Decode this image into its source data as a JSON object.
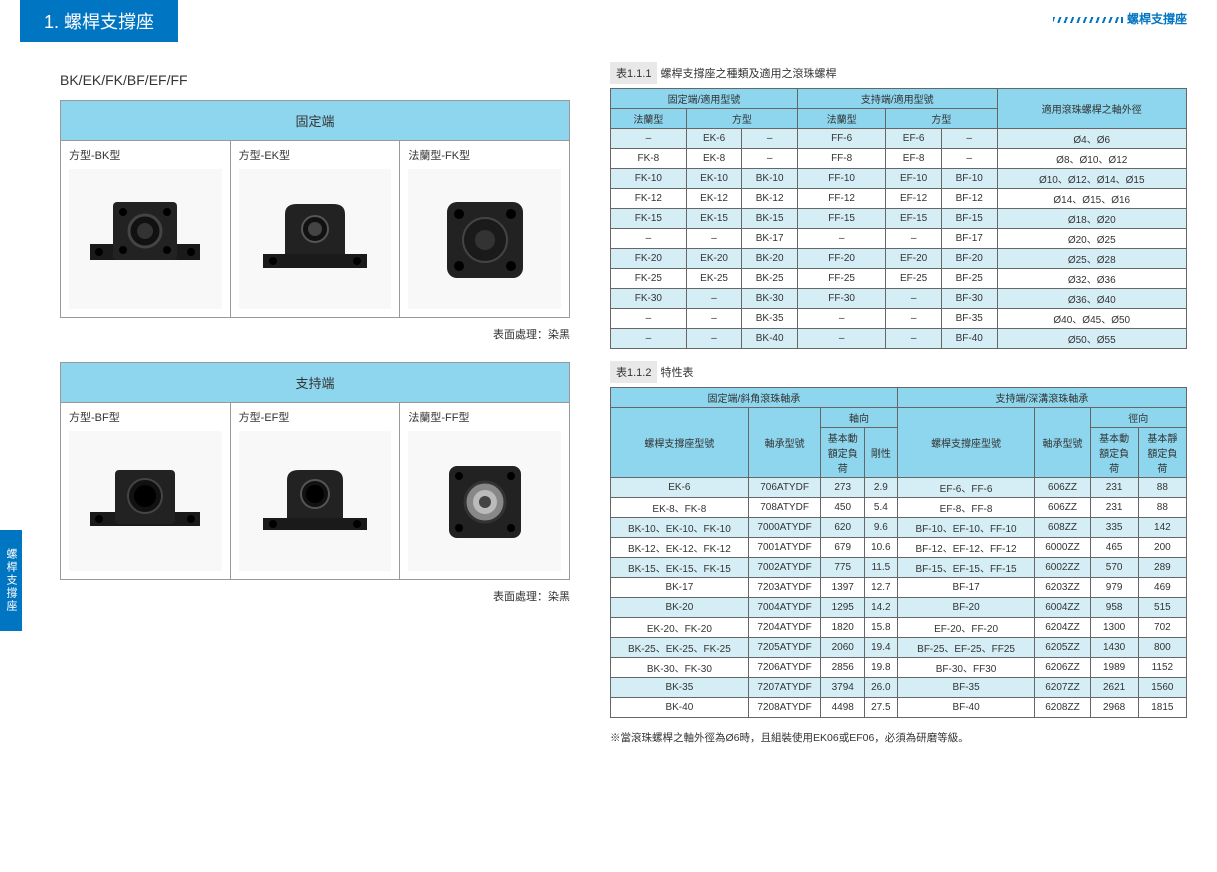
{
  "header": {
    "tab": "1. 螺桿支撐座",
    "topRight": "螺桿支撐座",
    "sideTab": "螺桿支撐座"
  },
  "left": {
    "subtitle": "BK/EK/FK/BF/EF/FF",
    "box1": {
      "title": "固定端",
      "c1": "方型-BK型",
      "c2": "方型-EK型",
      "c3": "法蘭型-FK型"
    },
    "box2": {
      "title": "支持端",
      "c1": "方型-BF型",
      "c2": "方型-EF型",
      "c3": "法蘭型-FF型"
    },
    "note": "表面處理：染黑"
  },
  "t1": {
    "caption_pre": "表1.1.1",
    "caption": "螺桿支撐座之種類及適用之滾珠螺桿",
    "h_fixed": "固定端/適用型號",
    "h_support": "支持端/適用型號",
    "h_diam": "適用滾珠螺桿之軸外徑",
    "h_flange": "法蘭型",
    "h_square": "方型",
    "rows": [
      {
        "a": "–",
        "b": "EK-6",
        "c": "–",
        "d": "FF-6",
        "e": "EF-6",
        "f": "–",
        "g": "Ø4、Ø6",
        "alt": 1
      },
      {
        "a": "FK-8",
        "b": "EK-8",
        "c": "–",
        "d": "FF-8",
        "e": "EF-8",
        "f": "–",
        "g": "Ø8、Ø10、Ø12",
        "alt": 0
      },
      {
        "a": "FK-10",
        "b": "EK-10",
        "c": "BK-10",
        "d": "FF-10",
        "e": "EF-10",
        "f": "BF-10",
        "g": "Ø10、Ø12、Ø14、Ø15",
        "alt": 1
      },
      {
        "a": "FK-12",
        "b": "EK-12",
        "c": "BK-12",
        "d": "FF-12",
        "e": "EF-12",
        "f": "BF-12",
        "g": "Ø14、Ø15、Ø16",
        "alt": 0
      },
      {
        "a": "FK-15",
        "b": "EK-15",
        "c": "BK-15",
        "d": "FF-15",
        "e": "EF-15",
        "f": "BF-15",
        "g": "Ø18、Ø20",
        "alt": 1
      },
      {
        "a": "–",
        "b": "–",
        "c": "BK-17",
        "d": "–",
        "e": "–",
        "f": "BF-17",
        "g": "Ø20、Ø25",
        "alt": 0
      },
      {
        "a": "FK-20",
        "b": "EK-20",
        "c": "BK-20",
        "d": "FF-20",
        "e": "EF-20",
        "f": "BF-20",
        "g": "Ø25、Ø28",
        "alt": 1
      },
      {
        "a": "FK-25",
        "b": "EK-25",
        "c": "BK-25",
        "d": "FF-25",
        "e": "EF-25",
        "f": "BF-25",
        "g": "Ø32、Ø36",
        "alt": 0
      },
      {
        "a": "FK-30",
        "b": "–",
        "c": "BK-30",
        "d": "FF-30",
        "e": "–",
        "f": "BF-30",
        "g": "Ø36、Ø40",
        "alt": 1
      },
      {
        "a": "–",
        "b": "–",
        "c": "BK-35",
        "d": "–",
        "e": "–",
        "f": "BF-35",
        "g": "Ø40、Ø45、Ø50",
        "alt": 0
      },
      {
        "a": "–",
        "b": "–",
        "c": "BK-40",
        "d": "–",
        "e": "–",
        "f": "BF-40",
        "g": "Ø50、Ø55",
        "alt": 1
      }
    ]
  },
  "t2": {
    "caption_pre": "表1.1.2",
    "caption": "特性表",
    "h_fixed": "固定端/斜角滾珠軸承",
    "h_support": "支持端/深溝滾珠軸承",
    "h_model": "螺桿支撐座型號",
    "h_bearing": "軸承型號",
    "h_axial": "軸向",
    "h_radial": "徑向",
    "h_dyn": "基本動額定負荷",
    "h_rigid": "剛性",
    "h_static": "基本靜額定負荷",
    "rows": [
      {
        "a": "EK-6",
        "b": "706ATYDF",
        "c": "273",
        "d": "2.9",
        "e": "EF-6、FF-6",
        "f": "606ZZ",
        "g": "231",
        "h": "88",
        "alt": 1
      },
      {
        "a": "EK-8、FK-8",
        "b": "708ATYDF",
        "c": "450",
        "d": "5.4",
        "e": "EF-8、FF-8",
        "f": "606ZZ",
        "g": "231",
        "h": "88",
        "alt": 0
      },
      {
        "a": "BK-10、EK-10、FK-10",
        "b": "7000ATYDF",
        "c": "620",
        "d": "9.6",
        "e": "BF-10、EF-10、FF-10",
        "f": "608ZZ",
        "g": "335",
        "h": "142",
        "alt": 1
      },
      {
        "a": "BK-12、EK-12、FK-12",
        "b": "7001ATYDF",
        "c": "679",
        "d": "10.6",
        "e": "BF-12、EF-12、FF-12",
        "f": "6000ZZ",
        "g": "465",
        "h": "200",
        "alt": 0
      },
      {
        "a": "BK-15、EK-15、FK-15",
        "b": "7002ATYDF",
        "c": "775",
        "d": "11.5",
        "e": "BF-15、EF-15、FF-15",
        "f": "6002ZZ",
        "g": "570",
        "h": "289",
        "alt": 1
      },
      {
        "a": "BK-17",
        "b": "7203ATYDF",
        "c": "1397",
        "d": "12.7",
        "e": "BF-17",
        "f": "6203ZZ",
        "g": "979",
        "h": "469",
        "alt": 0
      },
      {
        "a": "BK-20",
        "b": "7004ATYDF",
        "c": "1295",
        "d": "14.2",
        "e": "BF-20",
        "f": "6004ZZ",
        "g": "958",
        "h": "515",
        "alt": 1
      },
      {
        "a": "EK-20、FK-20",
        "b": "7204ATYDF",
        "c": "1820",
        "d": "15.8",
        "e": "EF-20、FF-20",
        "f": "6204ZZ",
        "g": "1300",
        "h": "702",
        "alt": 0
      },
      {
        "a": "BK-25、EK-25、FK-25",
        "b": "7205ATYDF",
        "c": "2060",
        "d": "19.4",
        "e": "BF-25、EF-25、FF25",
        "f": "6205ZZ",
        "g": "1430",
        "h": "800",
        "alt": 1
      },
      {
        "a": "BK-30、FK-30",
        "b": "7206ATYDF",
        "c": "2856",
        "d": "19.8",
        "e": "BF-30、FF30",
        "f": "6206ZZ",
        "g": "1989",
        "h": "1152",
        "alt": 0
      },
      {
        "a": "BK-35",
        "b": "7207ATYDF",
        "c": "3794",
        "d": "26.0",
        "e": "BF-35",
        "f": "6207ZZ",
        "g": "2621",
        "h": "1560",
        "alt": 1
      },
      {
        "a": "BK-40",
        "b": "7208ATYDF",
        "c": "4498",
        "d": "27.5",
        "e": "BF-40",
        "f": "6208ZZ",
        "g": "2968",
        "h": "1815",
        "alt": 0
      }
    ]
  },
  "footnote": "※當滾珠螺桿之軸外徑為Ø6時，且組裝使用EK06或EF06，必須為研磨等級。"
}
